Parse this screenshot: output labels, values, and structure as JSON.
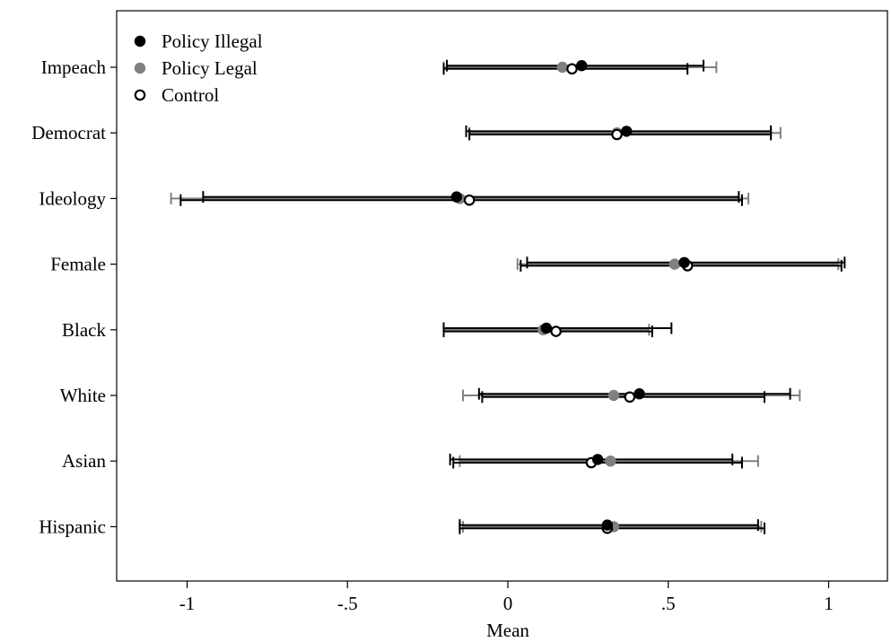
{
  "chart_data": {
    "type": "scatter",
    "subtype": "dot-with-confidence-intervals",
    "title": "",
    "xlabel": "Mean",
    "ylabel": "",
    "xlim": [
      -1.2,
      1.2
    ],
    "x_ticks": [
      -1,
      -0.5,
      0,
      0.5,
      1
    ],
    "x_tick_labels": [
      "-1",
      "-.5",
      "0",
      ".5",
      "1"
    ],
    "grid": false,
    "legend_position": "top-left",
    "categories": [
      "Impeach",
      "Democrat",
      "Ideology",
      "Female",
      "Black",
      "White",
      "Asian",
      "Hispanic"
    ],
    "series": [
      {
        "name": "Policy Illegal",
        "color": "#000000",
        "marker": "filled-circle",
        "points": [
          {
            "category": "Impeach",
            "mean": 0.23,
            "lo": -0.19,
            "hi": 0.61
          },
          {
            "category": "Democrat",
            "mean": 0.37,
            "lo": -0.13,
            "hi": 0.82
          },
          {
            "category": "Ideology",
            "mean": -0.16,
            "lo": -0.95,
            "hi": 0.72
          },
          {
            "category": "Female",
            "mean": 0.55,
            "lo": 0.06,
            "hi": 1.05
          },
          {
            "category": "Black",
            "mean": 0.12,
            "lo": -0.2,
            "hi": 0.51
          },
          {
            "category": "White",
            "mean": 0.41,
            "lo": -0.09,
            "hi": 0.88
          },
          {
            "category": "Asian",
            "mean": 0.28,
            "lo": -0.18,
            "hi": 0.7
          },
          {
            "category": "Hispanic",
            "mean": 0.31,
            "lo": -0.15,
            "hi": 0.78
          }
        ]
      },
      {
        "name": "Policy Legal",
        "color": "#808080",
        "marker": "filled-circle",
        "points": [
          {
            "category": "Impeach",
            "mean": 0.17,
            "lo": -0.2,
            "hi": 0.65
          },
          {
            "category": "Democrat",
            "mean": 0.34,
            "lo": -0.12,
            "hi": 0.85
          },
          {
            "category": "Ideology",
            "mean": -0.15,
            "lo": -1.05,
            "hi": 0.75
          },
          {
            "category": "Female",
            "mean": 0.52,
            "lo": 0.03,
            "hi": 1.03
          },
          {
            "category": "Black",
            "mean": 0.11,
            "lo": -0.2,
            "hi": 0.44
          },
          {
            "category": "White",
            "mean": 0.33,
            "lo": -0.14,
            "hi": 0.91
          },
          {
            "category": "Asian",
            "mean": 0.32,
            "lo": -0.15,
            "hi": 0.78
          },
          {
            "category": "Hispanic",
            "mean": 0.33,
            "lo": -0.14,
            "hi": 0.79
          }
        ]
      },
      {
        "name": "Control",
        "color": "#000000",
        "marker": "hollow-circle",
        "points": [
          {
            "category": "Impeach",
            "mean": 0.2,
            "lo": -0.2,
            "hi": 0.56
          },
          {
            "category": "Democrat",
            "mean": 0.34,
            "lo": -0.12,
            "hi": 0.82
          },
          {
            "category": "Ideology",
            "mean": -0.12,
            "lo": -1.02,
            "hi": 0.73
          },
          {
            "category": "Female",
            "mean": 0.56,
            "lo": 0.04,
            "hi": 1.04
          },
          {
            "category": "Black",
            "mean": 0.15,
            "lo": -0.2,
            "hi": 0.45
          },
          {
            "category": "White",
            "mean": 0.38,
            "lo": -0.08,
            "hi": 0.8
          },
          {
            "category": "Asian",
            "mean": 0.26,
            "lo": -0.17,
            "hi": 0.73
          },
          {
            "category": "Hispanic",
            "mean": 0.31,
            "lo": -0.15,
            "hi": 0.8
          }
        ]
      }
    ]
  }
}
